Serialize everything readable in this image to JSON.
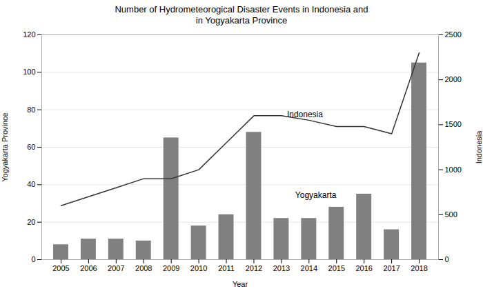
{
  "chart_data": {
    "type": "bar",
    "title": "Number of Hydrometeorogical Disaster Events in Indonesia and\nin Yogyakarta Province",
    "x": [
      2005,
      2006,
      2007,
      2008,
      2009,
      2010,
      2011,
      2012,
      2013,
      2014,
      2015,
      2016,
      2017,
      2018
    ],
    "xlabel": "Year",
    "ylabel": "Yogyakarta Province",
    "y2label": "Indonesia",
    "xlim": [
      2004.3,
      2018.7
    ],
    "xticks": [
      2005,
      2006,
      2007,
      2008,
      2009,
      2010,
      2011,
      2012,
      2013,
      2014,
      2015,
      2016,
      2017,
      2018
    ],
    "ylim": [
      0,
      120
    ],
    "yticks": [
      0,
      20,
      40,
      60,
      80,
      100,
      120
    ],
    "y2lim": [
      0,
      2500
    ],
    "y2ticks": [
      0,
      500,
      1000,
      1500,
      2000,
      2500
    ],
    "grid": true,
    "series": [
      {
        "type": "bar",
        "color": "#808080",
        "values": [
          8,
          11,
          11,
          10,
          65,
          18,
          24,
          68,
          22,
          22,
          28,
          35,
          16,
          105
        ]
      },
      {
        "type": "line",
        "color": "#333333",
        "axis": "y2",
        "values": [
          600,
          700,
          800,
          900,
          900,
          1000,
          1300,
          1600,
          1600,
          1550,
          1480,
          1480,
          1400,
          2300
        ]
      }
    ],
    "annotations": [
      {
        "text": "Indonesia",
        "x": 2013.2,
        "y": 76
      },
      {
        "text": "Yogyakarta",
        "x": 2013.5,
        "y": 33
      }
    ]
  }
}
